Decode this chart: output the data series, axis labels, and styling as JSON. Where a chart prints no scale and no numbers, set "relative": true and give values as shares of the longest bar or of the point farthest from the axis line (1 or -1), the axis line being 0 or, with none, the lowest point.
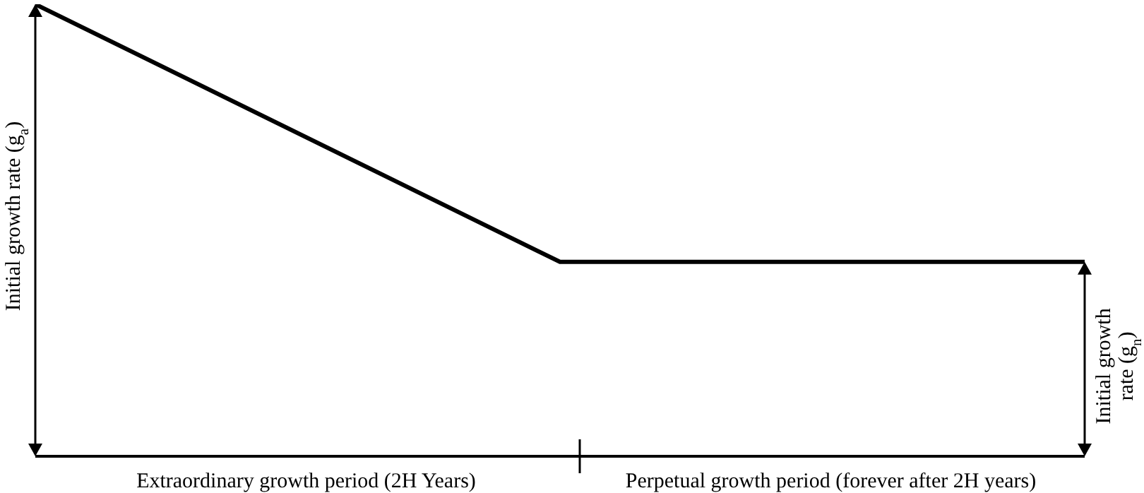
{
  "chart_data": {
    "type": "line",
    "relative": true,
    "categories": [
      null,
      null,
      null
    ],
    "series": [
      {
        "color": "#000000",
        "values": [
          1,
          0.43,
          0.43
        ]
      }
    ],
    "ylabel": "Initial growth rate (g$_{a}$)",
    "y2label": "Initial growth rate (g$_{n}$)",
    "annotations": [
      "Extraordinary growth period (2H Years)",
      "Perpetual growth period (forever after 2H years)"
    ]
  }
}
